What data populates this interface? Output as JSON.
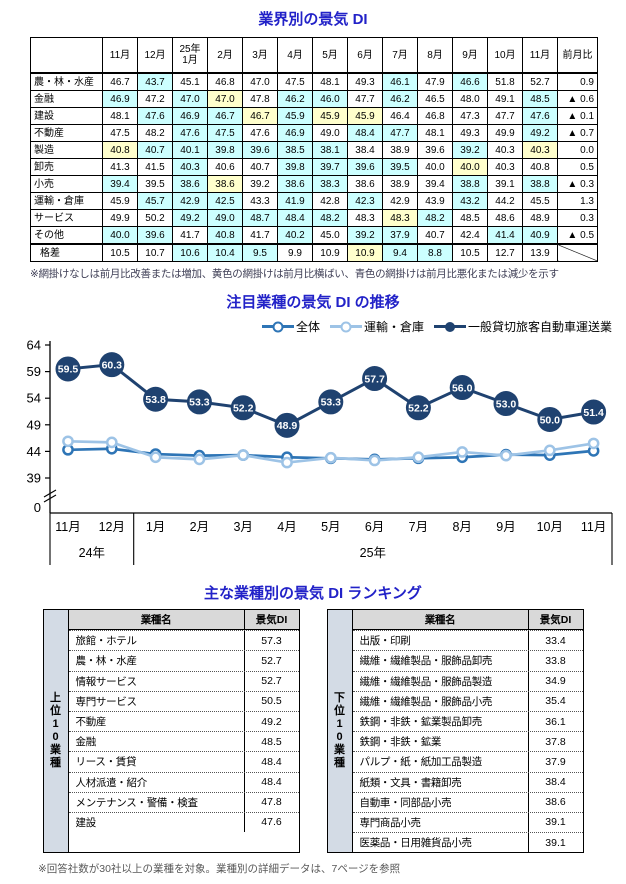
{
  "page": {
    "section1_title": "業界別の景気 DI",
    "section2_title": "注目業種の景気 DI の推移",
    "section3_title": "主な業種別の景気 DI ランキング",
    "table_note": "※網掛けなしは前月比改善または増加、黄色の網掛けは前月比横ばい、青色の網掛けは前月比悪化または減少を示す",
    "ranking_note": "※回答社数が30社以上の業種を対象。業種別の詳細データは、7ページを参照"
  },
  "di_table": {
    "columns": [
      "11月",
      "12月",
      "25年 1月",
      "2月",
      "3月",
      "4月",
      "5月",
      "6月",
      "7月",
      "8月",
      "9月",
      "10月",
      "11月",
      "前月比"
    ],
    "shade_colors": {
      "w": "#FFFFFF",
      "c": "#CCFFFF",
      "y": "#FFFFCC"
    },
    "rows": [
      {
        "name": "農・林・水産",
        "values": [
          46.7,
          43.7,
          45.1,
          46.8,
          47.0,
          47.5,
          48.1,
          49.3,
          46.1,
          47.9,
          46.6,
          51.8,
          52.7
        ],
        "shades": [
          "w",
          "c",
          "w",
          "w",
          "w",
          "w",
          "w",
          "w",
          "c",
          "w",
          "c",
          "w",
          "w"
        ],
        "mom": "0.9"
      },
      {
        "name": "金融",
        "values": [
          46.9,
          47.2,
          47.0,
          47.0,
          47.8,
          46.2,
          46.0,
          47.7,
          46.2,
          46.5,
          48.0,
          49.1,
          48.5
        ],
        "shades": [
          "c",
          "w",
          "c",
          "y",
          "w",
          "c",
          "c",
          "w",
          "c",
          "w",
          "w",
          "w",
          "c"
        ],
        "mom": "▲ 0.6"
      },
      {
        "name": "建設",
        "values": [
          48.1,
          47.6,
          46.9,
          46.7,
          46.7,
          45.9,
          45.9,
          45.9,
          46.4,
          46.8,
          47.3,
          47.7,
          47.6
        ],
        "shades": [
          "w",
          "c",
          "c",
          "c",
          "y",
          "c",
          "y",
          "y",
          "w",
          "w",
          "w",
          "w",
          "c"
        ],
        "mom": "▲ 0.1"
      },
      {
        "name": "不動産",
        "values": [
          47.5,
          48.2,
          47.6,
          47.5,
          47.6,
          46.9,
          49.0,
          48.4,
          47.7,
          48.1,
          49.3,
          49.9,
          49.2
        ],
        "shades": [
          "w",
          "w",
          "c",
          "c",
          "w",
          "c",
          "w",
          "c",
          "c",
          "w",
          "w",
          "w",
          "c"
        ],
        "mom": "▲ 0.7"
      },
      {
        "name": "製造",
        "values": [
          40.8,
          40.7,
          40.1,
          39.8,
          39.6,
          38.5,
          38.1,
          38.4,
          38.9,
          39.6,
          39.2,
          40.3,
          40.3
        ],
        "shades": [
          "y",
          "c",
          "c",
          "c",
          "c",
          "c",
          "c",
          "w",
          "w",
          "w",
          "c",
          "w",
          "y"
        ],
        "mom": "0.0"
      },
      {
        "name": "卸売",
        "values": [
          41.3,
          41.5,
          40.3,
          40.6,
          40.7,
          39.8,
          39.7,
          39.6,
          39.5,
          40.0,
          40.0,
          40.3,
          40.8
        ],
        "shades": [
          "w",
          "w",
          "c",
          "w",
          "w",
          "c",
          "c",
          "c",
          "c",
          "w",
          "y",
          "w",
          "w"
        ],
        "mom": "0.5"
      },
      {
        "name": "小売",
        "values": [
          39.4,
          39.5,
          38.6,
          38.6,
          39.2,
          38.6,
          38.3,
          38.6,
          38.9,
          39.4,
          38.8,
          39.1,
          38.8
        ],
        "shades": [
          "c",
          "w",
          "c",
          "y",
          "w",
          "c",
          "c",
          "w",
          "w",
          "w",
          "c",
          "w",
          "c"
        ],
        "mom": "▲ 0.3"
      },
      {
        "name": "運輸・倉庫",
        "values": [
          45.9,
          45.7,
          42.9,
          42.5,
          43.3,
          41.9,
          42.8,
          42.3,
          42.9,
          43.9,
          43.2,
          44.2,
          45.5
        ],
        "shades": [
          "w",
          "c",
          "c",
          "c",
          "w",
          "c",
          "w",
          "c",
          "w",
          "w",
          "c",
          "w",
          "w"
        ],
        "mom": "1.3"
      },
      {
        "name": "サービス",
        "values": [
          49.9,
          50.2,
          49.2,
          49.0,
          48.7,
          48.4,
          48.2,
          48.3,
          48.3,
          48.2,
          48.5,
          48.6,
          48.9
        ],
        "shades": [
          "w",
          "w",
          "c",
          "c",
          "c",
          "c",
          "c",
          "w",
          "y",
          "c",
          "w",
          "w",
          "w"
        ],
        "mom": "0.3"
      },
      {
        "name": "その他",
        "values": [
          40.0,
          39.6,
          41.7,
          40.8,
          41.7,
          40.2,
          45.0,
          39.2,
          37.9,
          40.7,
          42.4,
          41.4,
          40.9
        ],
        "shades": [
          "c",
          "c",
          "w",
          "c",
          "w",
          "c",
          "w",
          "c",
          "c",
          "w",
          "w",
          "c",
          "c"
        ],
        "mom": "▲ 0.5"
      },
      {
        "name": "格差",
        "values": [
          10.5,
          10.7,
          10.6,
          10.4,
          9.5,
          9.9,
          10.9,
          10.9,
          9.4,
          8.8,
          10.5,
          12.7,
          13.9
        ],
        "shades": [
          "w",
          "w",
          "c",
          "c",
          "c",
          "w",
          "w",
          "y",
          "c",
          "c",
          "w",
          "w",
          "w"
        ],
        "mom": null,
        "gap": true,
        "diagonal": true
      }
    ]
  },
  "chart_data": {
    "type": "line",
    "title": "注目業種の景気 DI の推移",
    "categories": [
      "11月",
      "12月",
      "1月",
      "2月",
      "3月",
      "4月",
      "5月",
      "6月",
      "7月",
      "8月",
      "9月",
      "10月",
      "11月"
    ],
    "year_groups": [
      {
        "label": "24年",
        "span": 2
      },
      {
        "label": "25年",
        "span": 11
      }
    ],
    "y_ticks": [
      64,
      59,
      54,
      49,
      44,
      39
    ],
    "y_break_to_zero": true,
    "zero_label": "0",
    "legend_position": "top-right",
    "series": [
      {
        "name": "全体",
        "color": "#2E75B6",
        "marker": "ring",
        "show_labels": false,
        "values": [
          44.3,
          44.5,
          43.5,
          43.2,
          43.3,
          42.9,
          42.7,
          42.5,
          42.7,
          42.9,
          43.4,
          43.3,
          44.1
        ]
      },
      {
        "name": "運輸・倉庫",
        "color": "#9DC3E6",
        "marker": "ring",
        "show_labels": false,
        "values": [
          45.9,
          45.7,
          42.9,
          42.5,
          43.3,
          41.9,
          42.8,
          42.3,
          42.9,
          43.9,
          43.2,
          44.2,
          45.5
        ]
      },
      {
        "name": "一般貸切旅客自動車運送業",
        "color": "#1F4270",
        "marker": "bubble",
        "show_labels": true,
        "values": [
          59.5,
          60.3,
          53.8,
          53.3,
          52.2,
          48.9,
          53.3,
          57.7,
          52.2,
          56.0,
          53.0,
          50.0,
          51.4
        ]
      }
    ]
  },
  "ranking": {
    "header": {
      "name": "業種名",
      "di": "景気DI"
    },
    "tables": [
      {
        "side_label": "上位10業種",
        "rows": [
          {
            "name": "旅館・ホテル",
            "di": 57.3
          },
          {
            "name": "農・林・水産",
            "di": 52.7
          },
          {
            "name": "情報サービス",
            "di": 52.7
          },
          {
            "name": "専門サービス",
            "di": 50.5
          },
          {
            "name": "不動産",
            "di": 49.2
          },
          {
            "name": "金融",
            "di": 48.5
          },
          {
            "name": "リース・賃貸",
            "di": 48.4
          },
          {
            "name": "人材派遣・紹介",
            "di": 48.4
          },
          {
            "name": "メンテナンス・警備・検査",
            "di": 47.8
          },
          {
            "name": "建設",
            "di": 47.6
          }
        ]
      },
      {
        "side_label": "下位10業種",
        "rows": [
          {
            "name": "出版・印刷",
            "di": 33.4
          },
          {
            "name": "繊維・繊維製品・服飾品卸売",
            "di": 33.8
          },
          {
            "name": "繊維・繊維製品・服飾品製造",
            "di": 34.9
          },
          {
            "name": "繊維・繊維製品・服飾品小売",
            "di": 35.4
          },
          {
            "name": "鉄鋼・非鉄・鉱業製品卸売",
            "di": 36.1
          },
          {
            "name": "鉄鋼・非鉄・鉱業",
            "di": 37.8
          },
          {
            "name": "パルプ・紙・紙加工品製造",
            "di": 37.9
          },
          {
            "name": "紙類・文具・書籍卸売",
            "di": 38.4
          },
          {
            "name": "自動車・同部品小売",
            "di": 38.6
          },
          {
            "name": "専門商品小売",
            "di": 39.1
          },
          {
            "name": "医薬品・日用雑貨品小売",
            "di": 39.1
          }
        ]
      }
    ]
  }
}
